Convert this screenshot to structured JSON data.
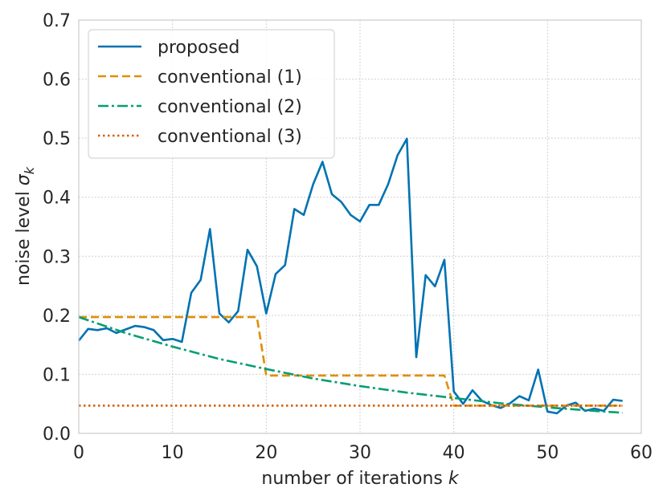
{
  "chart_data": {
    "type": "line",
    "title": "",
    "xlabel": "number of iterations",
    "xlabel_var": "k",
    "ylabel": "noise level",
    "ylabel_var": "σ",
    "ylabel_sub": "k",
    "xlim": [
      0,
      60
    ],
    "ylim": [
      0,
      0.7
    ],
    "xticks": [
      0,
      10,
      20,
      30,
      40,
      50,
      60
    ],
    "yticks": [
      0.0,
      0.1,
      0.2,
      0.3,
      0.4,
      0.5,
      0.6,
      0.7
    ],
    "xtick_labels": [
      "0",
      "10",
      "20",
      "30",
      "40",
      "50",
      "60"
    ],
    "ytick_labels": [
      "0.0",
      "0.1",
      "0.2",
      "0.3",
      "0.4",
      "0.5",
      "0.6",
      "0.7"
    ],
    "grid": true,
    "legend_position": "upper-left",
    "series": [
      {
        "name": "proposed",
        "color": "#0072b2",
        "style": "solid",
        "x": [
          0,
          1,
          2,
          3,
          4,
          5,
          6,
          7,
          8,
          9,
          10,
          11,
          12,
          13,
          14,
          15,
          16,
          17,
          18,
          19,
          20,
          21,
          22,
          23,
          24,
          25,
          26,
          27,
          28,
          29,
          30,
          31,
          32,
          33,
          34,
          35,
          36,
          37,
          38,
          39,
          40,
          41,
          42,
          43,
          44,
          45,
          46,
          47,
          48,
          49,
          50,
          51,
          52,
          53,
          54,
          55,
          56,
          57,
          58
        ],
        "y": [
          0.157,
          0.177,
          0.175,
          0.178,
          0.17,
          0.176,
          0.182,
          0.18,
          0.175,
          0.158,
          0.16,
          0.155,
          0.238,
          0.26,
          0.346,
          0.203,
          0.188,
          0.207,
          0.311,
          0.283,
          0.203,
          0.27,
          0.285,
          0.38,
          0.37,
          0.422,
          0.46,
          0.405,
          0.392,
          0.37,
          0.359,
          0.387,
          0.387,
          0.422,
          0.471,
          0.499,
          0.129,
          0.268,
          0.249,
          0.294,
          0.071,
          0.05,
          0.073,
          0.055,
          0.048,
          0.043,
          0.051,
          0.063,
          0.056,
          0.108,
          0.037,
          0.034,
          0.047,
          0.052,
          0.038,
          0.042,
          0.038,
          0.057,
          0.055
        ]
      },
      {
        "name": "conventional (1)",
        "color": "#de8f05",
        "style": "dashed",
        "x": [
          0,
          19,
          20,
          39,
          40,
          58
        ],
        "y": [
          0.197,
          0.197,
          0.098,
          0.098,
          0.047,
          0.047
        ]
      },
      {
        "name": "conventional (2)",
        "color": "#029e73",
        "style": "dashdot",
        "x": [
          0,
          5,
          10,
          15,
          20,
          25,
          30,
          35,
          40,
          45,
          50,
          55,
          58
        ],
        "y": [
          0.197,
          0.17,
          0.147,
          0.126,
          0.109,
          0.093,
          0.08,
          0.069,
          0.06,
          0.051,
          0.044,
          0.038,
          0.035
        ]
      },
      {
        "name": "conventional (3)",
        "color": "#d55e00",
        "style": "dotted",
        "x": [
          0,
          58
        ],
        "y": [
          0.047,
          0.047
        ]
      }
    ]
  }
}
